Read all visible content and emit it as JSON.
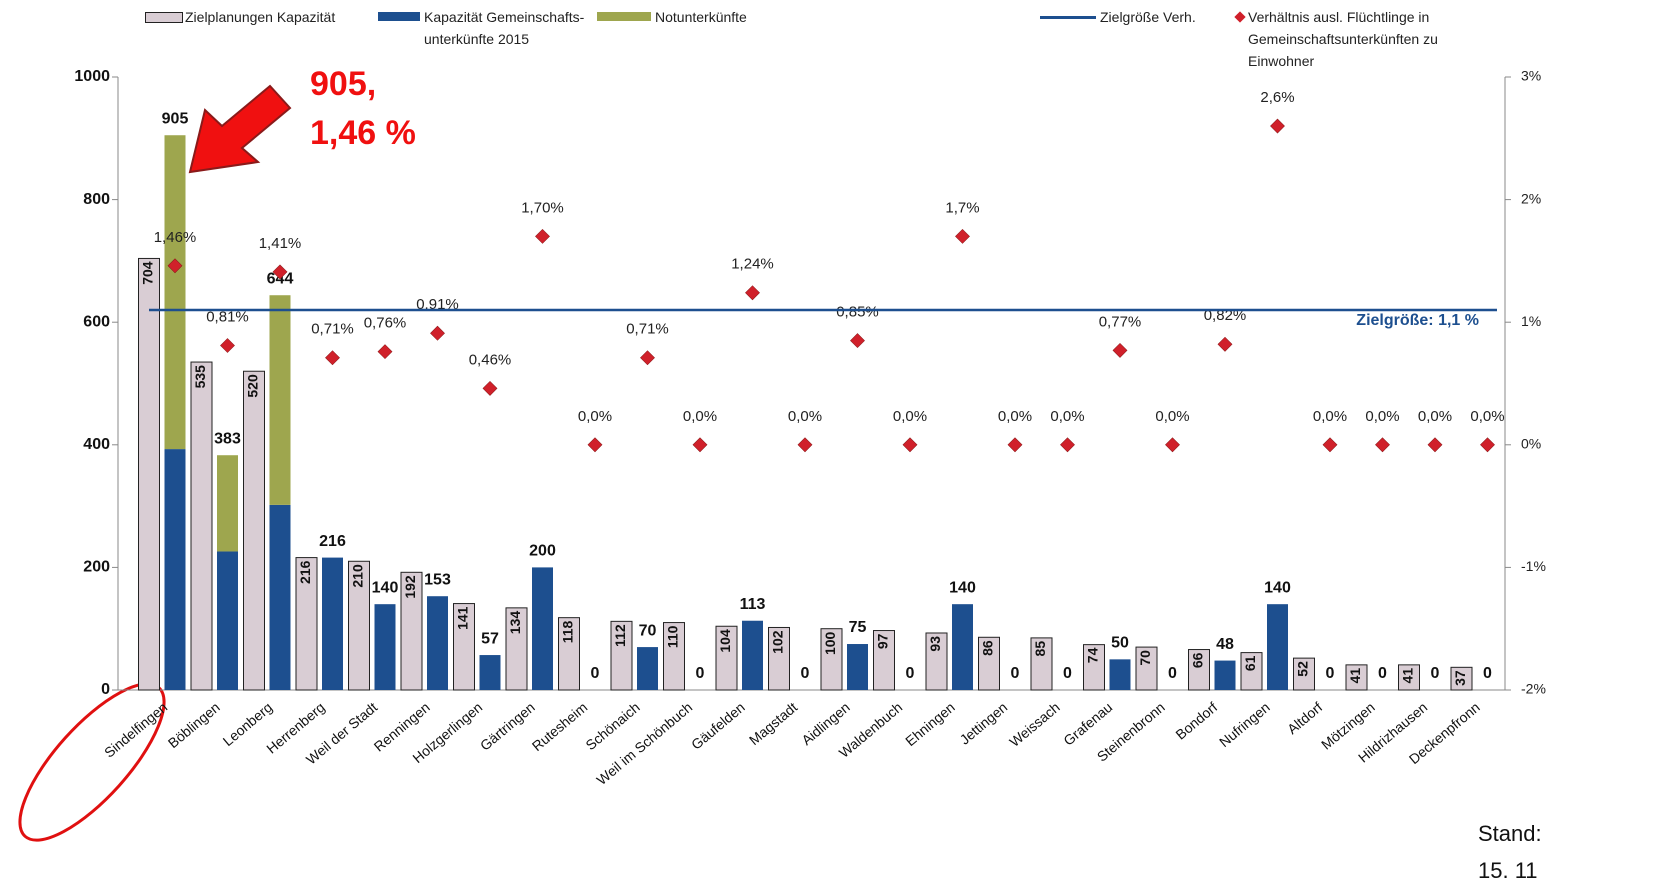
{
  "chart_data": {
    "type": "bar",
    "categories": [
      "Sindelfingen",
      "Böblingen",
      "Leonberg",
      "Herrenberg",
      "Weil der Stadt",
      "Renningen",
      "Holzgerlingen",
      "Gärtringen",
      "Rutesheim",
      "Schönaich",
      "Weil im Schönbuch",
      "Gäufelden",
      "Magstadt",
      "Aidlingen",
      "Waldenbuch",
      "Ehningen",
      "Jettingen",
      "Weissach",
      "Grafenau",
      "Steinenbronn",
      "Bondorf",
      "Nufringen",
      "Altdorf",
      "Mötzingen",
      "Hildrizhausen",
      "Deckenpfronn"
    ],
    "series": [
      {
        "name": "Zielplanungen Kapazität",
        "color": "#d9cdd4",
        "values": [
          704,
          535,
          520,
          216,
          210,
          192,
          141,
          134,
          118,
          112,
          110,
          104,
          102,
          100,
          97,
          93,
          86,
          85,
          74,
          70,
          66,
          61,
          52,
          41,
          41,
          37
        ]
      },
      {
        "name": "Kapazität Gemeinschafts- unterkünfte 2015",
        "color": "#1d4f8f",
        "values": [
          393,
          226,
          302,
          216,
          140,
          153,
          57,
          200,
          0,
          70,
          0,
          113,
          0,
          75,
          0,
          140,
          0,
          0,
          50,
          0,
          48,
          140,
          0,
          0,
          0,
          0
        ]
      },
      {
        "name": "Notunterkünfte",
        "color": "#9ea64e",
        "values": [
          512,
          157,
          342,
          0,
          0,
          0,
          0,
          0,
          0,
          0,
          0,
          0,
          0,
          0,
          0,
          0,
          0,
          0,
          0,
          0,
          0,
          0,
          0,
          0,
          0,
          0
        ]
      },
      {
        "name": "Verhältnis ausl. Flüchtlinge in Gemeinschaftsunterkünften zu Einwohner",
        "color": "#d0202a",
        "axis": "y2",
        "values": [
          1.46,
          0.81,
          1.41,
          0.71,
          0.76,
          0.91,
          0.46,
          1.7,
          0,
          0.71,
          0,
          1.24,
          0,
          0.85,
          0,
          1.7,
          0,
          0,
          0.77,
          0,
          0.82,
          2.6,
          0,
          0,
          0,
          0
        ],
        "value_labels": [
          "1,46%",
          "0,81%",
          "1,41%",
          "0,71%",
          "0,76%",
          "0,91%",
          "0,46%",
          "1,70%",
          "0,0%",
          "0,71%",
          "0,0%",
          "1,24%",
          "0,0%",
          "0,85%",
          "0,0%",
          "1,7%",
          "0,0%",
          "0,0%",
          "0,77%",
          "0,0%",
          "0,82%",
          "2,6%",
          "0,0%",
          "0,0%",
          "0,0%",
          "0,0%"
        ]
      }
    ],
    "totals": [
      905,
      383,
      644,
      216,
      140,
      153,
      57,
      200,
      0,
      70,
      0,
      113,
      0,
      75,
      0,
      140,
      0,
      0,
      50,
      0,
      48,
      140,
      0,
      0,
      0,
      0
    ],
    "reference_line": {
      "name": "Zielgröße Verh.",
      "color": "#1d4f8f",
      "value": 1.1,
      "label": "Zielgröße: 1,1 %",
      "axis": "y2"
    },
    "ylim": [
      0,
      1000
    ],
    "yticks": [
      0,
      200,
      400,
      600,
      800,
      1000
    ],
    "y2lim": [
      -2,
      3
    ],
    "y2ticks": [
      {
        "value": -2,
        "label": "-2%"
      },
      {
        "value": -1,
        "label": "-1%"
      },
      {
        "value": 0,
        "label": "0%"
      },
      {
        "value": 1,
        "label": "1%"
      },
      {
        "value": 2,
        "label": "2%"
      },
      {
        "value": 3,
        "label": "3%"
      }
    ],
    "annotation": [
      "905,",
      "1,46 %"
    ],
    "footnote": [
      "Stand:",
      "15. 11"
    ]
  }
}
